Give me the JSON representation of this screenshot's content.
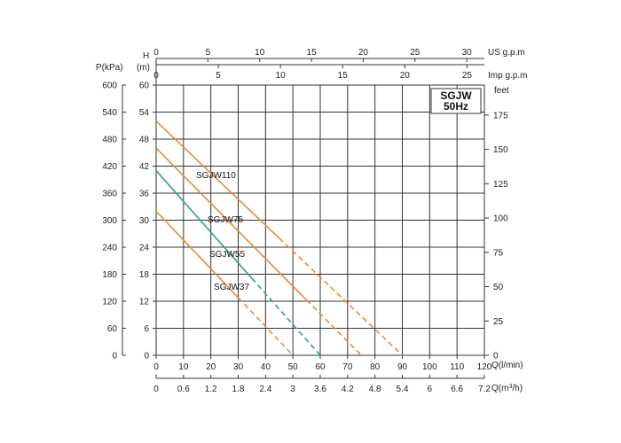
{
  "colors": {
    "orange": "#e8893a",
    "teal": "#2e9e9b",
    "grid": "#333333"
  },
  "chart_data": {
    "type": "line",
    "title": "SGJW",
    "subtitle": "50Hz",
    "grid": true,
    "x_primary": {
      "label": "Q(l/min)",
      "range": [
        0,
        120
      ],
      "ticks": [
        "0",
        "10",
        "20",
        "30",
        "40",
        "50",
        "60",
        "70",
        "80",
        "90",
        "100",
        "110",
        "120"
      ]
    },
    "x_secondary_bottom": {
      "label": "Q(m³/h)",
      "label_main": "Q(m",
      "label_sup": "3",
      "label_end": "/h)",
      "range": [
        0,
        7.2
      ],
      "ticks": [
        "0",
        "0.6",
        "1.2",
        "1.8",
        "2.4",
        "3",
        "3.6",
        "4.2",
        "4.8",
        "5.4",
        "6",
        "6.6",
        "7.2"
      ]
    },
    "x_top_us": {
      "label": "US g.p.m",
      "range": [
        0,
        31.7
      ],
      "ticks": [
        "0",
        "5",
        "10",
        "15",
        "20",
        "25",
        "30"
      ]
    },
    "x_top_imp": {
      "label": "Imp g.p.m",
      "range": [
        0,
        26.4
      ],
      "ticks": [
        "0",
        "5",
        "10",
        "15",
        "20",
        "25"
      ]
    },
    "y_primary": {
      "label": "H",
      "unit": "(m)",
      "range": [
        0,
        60
      ],
      "ticks": [
        "0",
        "6",
        "12",
        "18",
        "24",
        "30",
        "36",
        "42",
        "48",
        "54",
        "60"
      ]
    },
    "y_left_kpa": {
      "label": "P(kPa)",
      "range": [
        0,
        600
      ],
      "ticks": [
        "0",
        "60",
        "120",
        "180",
        "240",
        "300",
        "360",
        "420",
        "480",
        "540",
        "600"
      ]
    },
    "y_right_feet": {
      "label": "feet",
      "range": [
        0,
        196.85
      ],
      "ticks": [
        "0",
        "25",
        "50",
        "75",
        "100",
        "125",
        "150",
        "175"
      ]
    },
    "series": [
      {
        "name": "SGJW110",
        "color": "orange",
        "x": [
          0,
          90
        ],
        "y": [
          52,
          0
        ],
        "solid_to": 45
      },
      {
        "name": "SGJW75",
        "color": "orange",
        "x": [
          0,
          75
        ],
        "y": [
          46,
          0
        ],
        "solid_to": 55
      },
      {
        "name": "SGJW55",
        "color": "teal",
        "x": [
          0,
          60
        ],
        "y": [
          41,
          0
        ],
        "solid_to": 35
      },
      {
        "name": "SGJW37",
        "color": "orange",
        "x": [
          0,
          50
        ],
        "y": [
          32,
          0
        ],
        "solid_to": 30
      }
    ]
  }
}
